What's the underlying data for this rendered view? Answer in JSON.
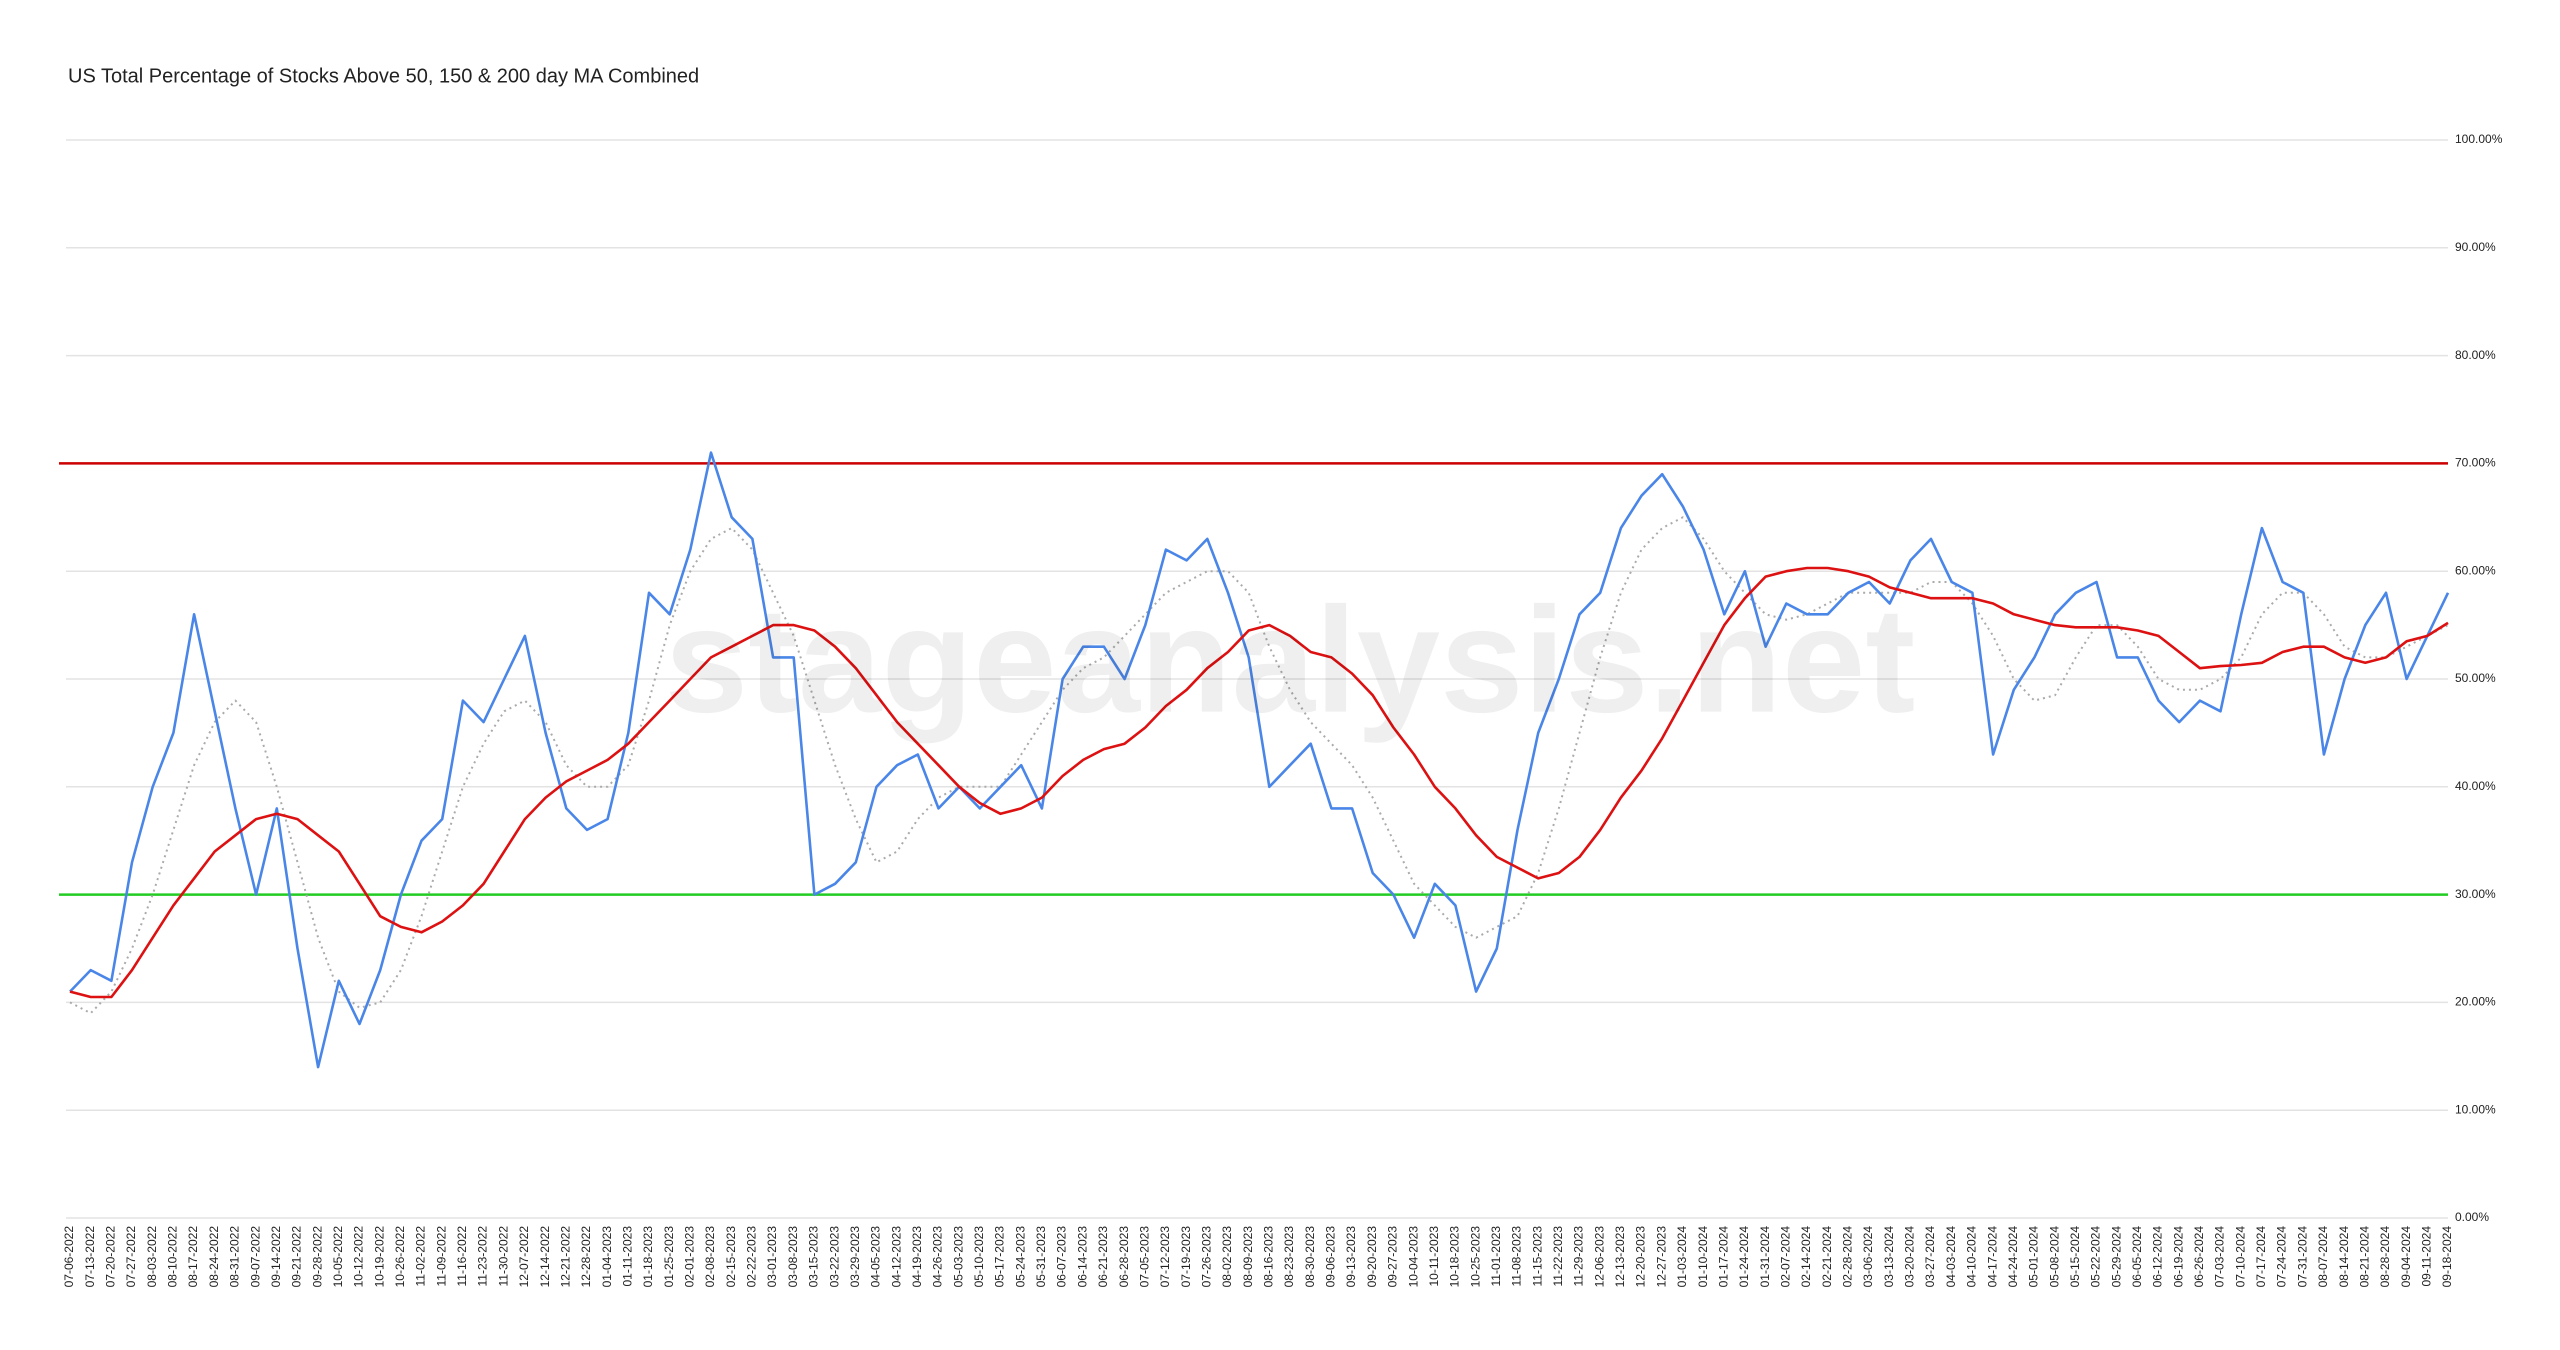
{
  "chart_data": {
    "type": "line",
    "title": "US Total Percentage of Stocks Above 50, 150 & 200 day MA Combined",
    "watermark": "stageanalysis.net",
    "categories": [
      "07-06-2022",
      "07-13-2022",
      "07-20-2022",
      "07-27-2022",
      "08-03-2022",
      "08-10-2022",
      "08-17-2022",
      "08-24-2022",
      "08-31-2022",
      "09-07-2022",
      "09-14-2022",
      "09-21-2022",
      "09-28-2022",
      "10-05-2022",
      "10-12-2022",
      "10-19-2022",
      "10-26-2022",
      "11-02-2022",
      "11-09-2022",
      "11-16-2022",
      "11-23-2022",
      "11-30-2022",
      "12-07-2022",
      "12-14-2022",
      "12-21-2022",
      "12-28-2022",
      "01-04-2023",
      "01-11-2023",
      "01-18-2023",
      "01-25-2023",
      "02-01-2023",
      "02-08-2023",
      "02-15-2023",
      "02-22-2023",
      "03-01-2023",
      "03-08-2023",
      "03-15-2023",
      "03-22-2023",
      "03-29-2023",
      "04-05-2023",
      "04-12-2023",
      "04-19-2023",
      "04-26-2023",
      "05-03-2023",
      "05-10-2023",
      "05-17-2023",
      "05-24-2023",
      "05-31-2023",
      "06-07-2023",
      "06-14-2023",
      "06-21-2023",
      "06-28-2023",
      "07-05-2023",
      "07-12-2023",
      "07-19-2023",
      "07-26-2023",
      "08-02-2023",
      "08-09-2023",
      "08-16-2023",
      "08-23-2023",
      "08-30-2023",
      "09-06-2023",
      "09-13-2023",
      "09-20-2023",
      "09-27-2023",
      "10-04-2023",
      "10-11-2023",
      "10-18-2023",
      "10-25-2023",
      "11-01-2023",
      "11-08-2023",
      "11-15-2023",
      "11-22-2023",
      "11-29-2023",
      "12-06-2023",
      "12-13-2023",
      "12-20-2023",
      "12-27-2023",
      "01-03-2024",
      "01-10-2024",
      "01-17-2024",
      "01-24-2024",
      "01-31-2024",
      "02-07-2024",
      "02-14-2024",
      "02-21-2024",
      "02-28-2024",
      "03-06-2024",
      "03-13-2024",
      "03-20-2024",
      "03-27-2024",
      "04-03-2024",
      "04-10-2024",
      "04-17-2024",
      "04-24-2024",
      "05-01-2024",
      "05-08-2024",
      "05-15-2024",
      "05-22-2024",
      "05-29-2024",
      "06-05-2024",
      "06-12-2024",
      "06-19-2024",
      "06-26-2024",
      "07-03-2024",
      "07-10-2024",
      "07-17-2024",
      "07-24-2024",
      "07-31-2024",
      "08-07-2024",
      "08-14-2024",
      "08-21-2024",
      "08-28-2024",
      "09-04-2024",
      "09-11-2024",
      "09-18-2024"
    ],
    "series": [
      {
        "color": "#aaaaaa",
        "style": "dotted",
        "values": [
          20,
          19,
          21,
          25,
          30,
          36,
          42,
          46,
          48,
          46,
          40,
          33,
          26,
          21,
          19.5,
          20,
          23,
          28,
          34,
          40,
          44,
          47,
          48,
          46,
          42,
          40,
          40,
          42,
          48,
          55,
          60,
          63,
          64,
          62,
          58,
          54,
          48,
          42,
          37,
          33,
          34,
          37,
          39,
          40,
          40,
          40,
          43,
          46,
          49,
          51,
          52,
          54,
          56,
          58,
          59,
          60,
          60,
          58,
          53,
          49,
          46,
          44,
          42,
          39,
          35,
          31,
          29,
          27,
          26,
          27,
          28,
          32,
          38,
          45,
          52,
          58,
          62,
          64,
          65,
          63,
          60,
          58,
          56,
          55.5,
          56,
          57,
          58,
          58,
          58,
          58,
          59,
          59,
          57,
          54,
          50,
          48,
          48.5,
          52,
          55,
          55,
          53,
          50,
          49,
          49,
          50,
          52,
          56,
          58,
          58,
          56,
          53,
          52,
          52,
          53,
          54,
          55
        ]
      },
      {
        "color": "#4a86e8",
        "style": "solid",
        "values": [
          21,
          23,
          22,
          33,
          40,
          45,
          56,
          47,
          38,
          30,
          38,
          25,
          14,
          22,
          18,
          23,
          30,
          35,
          37,
          48,
          46,
          50,
          54,
          45,
          38,
          36,
          37,
          45,
          58,
          56,
          62,
          71,
          65,
          63,
          52,
          52,
          30,
          31,
          33,
          40,
          42,
          43,
          38,
          40,
          38,
          40,
          42,
          38,
          50,
          53,
          53,
          50,
          55,
          62,
          61,
          63,
          58,
          52,
          40,
          42,
          44,
          38,
          38,
          32,
          30,
          26,
          31,
          29,
          21,
          25,
          36,
          45,
          50,
          56,
          58,
          64,
          67,
          69,
          66,
          62,
          56,
          60,
          53,
          57,
          56,
          56,
          58,
          59,
          57,
          61,
          63,
          59,
          58,
          43,
          49,
          52,
          56,
          58,
          59,
          52,
          52,
          48,
          46,
          48,
          47,
          56,
          64,
          59,
          58,
          43,
          50,
          55,
          58,
          50,
          54,
          58
        ]
      },
      {
        "color": "#dd1111",
        "style": "solid",
        "values": [
          21,
          20.5,
          20.5,
          23,
          26,
          29,
          31.5,
          34,
          35.5,
          37,
          37.5,
          37,
          35.5,
          34,
          31,
          28,
          27,
          26.5,
          27.5,
          29,
          31,
          34,
          37,
          39,
          40.5,
          41.5,
          42.5,
          44,
          46,
          48,
          50,
          52,
          53,
          54,
          55,
          55,
          54.5,
          53,
          51,
          48.5,
          46,
          44,
          42,
          40,
          38.5,
          37.5,
          38,
          39,
          41,
          42.5,
          43.5,
          44,
          45.5,
          47.5,
          49,
          51,
          52.5,
          54.5,
          55,
          54,
          52.5,
          52,
          50.5,
          48.5,
          45.5,
          43,
          40,
          38,
          35.5,
          33.5,
          32.5,
          31.5,
          32,
          33.5,
          36,
          39,
          41.5,
          44.5,
          48,
          51.5,
          55,
          57.5,
          59.5,
          60,
          60.3,
          60.3,
          60,
          59.5,
          58.5,
          58,
          57.5,
          57.5,
          57.5,
          57,
          56,
          55.5,
          55,
          54.8,
          54.8,
          54.8,
          54.5,
          54,
          52.5,
          51,
          51.2,
          51.3,
          51.5,
          52.5,
          53,
          53,
          52,
          51.5,
          52,
          53.5,
          54,
          55.2
        ]
      }
    ],
    "reference_lines": [
      {
        "value": 70,
        "color": "#cc0000"
      },
      {
        "value": 30,
        "color": "#22cc22"
      }
    ],
    "ylim": [
      0,
      100
    ],
    "yticks": [
      {
        "value": 0,
        "label": "0.00%"
      },
      {
        "value": 10,
        "label": "10.00%"
      },
      {
        "value": 20,
        "label": "20.00%"
      },
      {
        "value": 30,
        "label": "30.00%"
      },
      {
        "value": 40,
        "label": "40.00%"
      },
      {
        "value": 50,
        "label": "50.00%"
      },
      {
        "value": 60,
        "label": "60.00%"
      },
      {
        "value": 70,
        "label": "70.00%"
      },
      {
        "value": 80,
        "label": "80.00%"
      },
      {
        "value": 90,
        "label": "90.00%"
      },
      {
        "value": 100,
        "label": "100.00%"
      }
    ],
    "grid": true
  }
}
